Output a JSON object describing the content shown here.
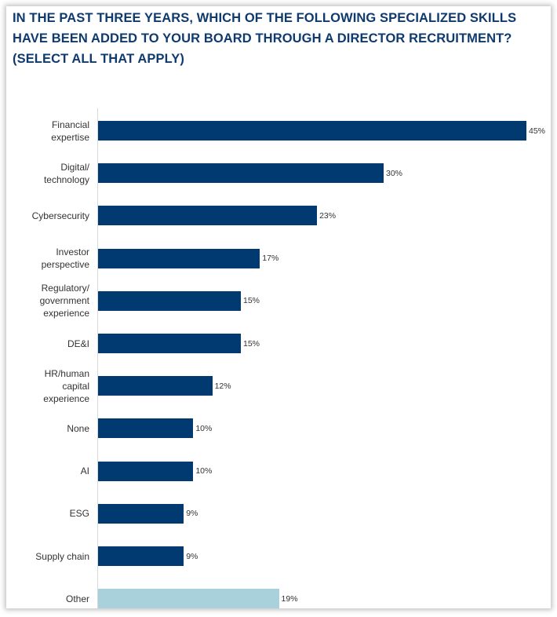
{
  "chart_data": {
    "type": "bar",
    "orientation": "horizontal",
    "title": "IN THE PAST THREE YEARS, WHICH OF THE FOLLOWING SPECIALIZED SKILLS HAVE BEEN ADDED TO YOUR BOARD THROUGH A DIRECTOR RECRUITMENT? (SELECT ALL THAT APPLY)",
    "categories": [
      "Financial\nexpertise",
      "Digital/\ntechnology",
      "Cybersecurity",
      "Investor\nperspective",
      "Regulatory/\ngovernment\nexperience",
      "DE&I",
      "HR/human\ncapital\nexperience",
      "None",
      "AI",
      "ESG",
      "Supply chain",
      "Other"
    ],
    "values": [
      45,
      30,
      23,
      17,
      15,
      15,
      12,
      10,
      10,
      9,
      9,
      19
    ],
    "data_labels": [
      "45%",
      "30%",
      "23%",
      "17%",
      "15%",
      "15%",
      "12%",
      "10%",
      "10%",
      "9%",
      "9%",
      "19%"
    ],
    "unit": "%",
    "xlim": [
      0,
      45
    ],
    "grid": false,
    "colors": {
      "primary": "#003a70",
      "other": "#a8d1db",
      "title": "#0f3a6e"
    }
  }
}
